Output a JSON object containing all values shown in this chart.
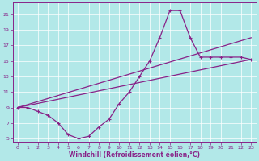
{
  "xlabel": "Windchill (Refroidissement éolien,°C)",
  "background_color": "#b2e8e8",
  "line_color": "#882288",
  "grid_color": "#cceeee",
  "xlim": [
    -0.5,
    23.5
  ],
  "ylim": [
    4.5,
    22.5
  ],
  "xticks": [
    0,
    1,
    2,
    3,
    4,
    5,
    6,
    7,
    8,
    9,
    10,
    11,
    12,
    13,
    14,
    15,
    16,
    17,
    18,
    19,
    20,
    21,
    22,
    23
  ],
  "yticks": [
    5,
    7,
    9,
    11,
    13,
    15,
    17,
    19,
    21
  ],
  "line1_x": [
    0,
    1,
    2,
    3,
    4,
    5,
    6,
    7,
    8,
    9,
    10,
    11,
    12,
    13,
    14,
    15,
    16,
    17,
    18,
    19,
    20,
    21,
    22,
    23
  ],
  "line1_y": [
    9,
    9,
    8.5,
    8,
    7,
    5.5,
    5,
    5.3,
    6.5,
    7.5,
    9.5,
    11,
    13,
    15,
    18,
    21.5,
    21.5,
    18,
    15.5,
    15.5,
    15.5,
    15.5,
    15.5,
    15.2
  ],
  "line2_x": [
    0,
    23
  ],
  "line2_y": [
    9,
    18
  ],
  "line3_x": [
    0,
    23
  ],
  "line3_y": [
    9,
    15.2
  ]
}
